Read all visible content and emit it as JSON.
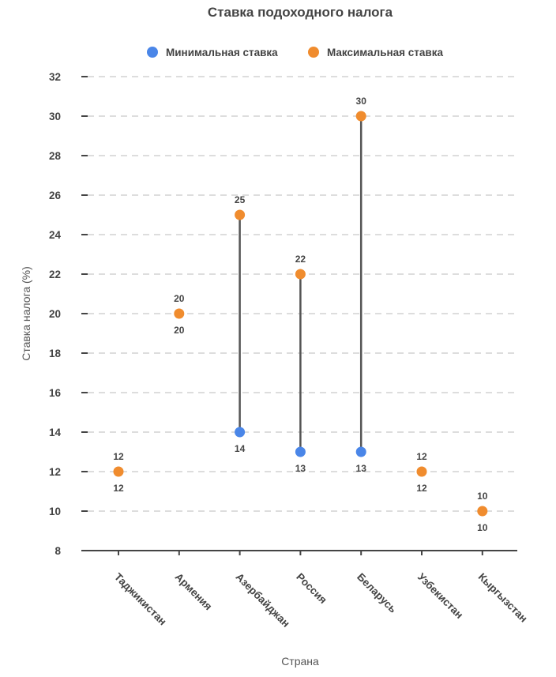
{
  "chart_data": {
    "type": "dumbbell",
    "title": "Ставка подоходного налога",
    "xlabel": "Страна",
    "ylabel": "Ставка налога (%)",
    "ylim": [
      8,
      32
    ],
    "yticks": [
      "32",
      "30",
      "28",
      "26",
      "24",
      "22",
      "20",
      "18",
      "16",
      "14",
      "12",
      "10",
      "8"
    ],
    "ytick_values": [
      32,
      30,
      28,
      26,
      24,
      22,
      20,
      18,
      16,
      14,
      12,
      10,
      8
    ],
    "grid": true,
    "legend_position": "top-center",
    "categories": [
      "Таджикистан",
      "Армения",
      "Азербайджан",
      "Россия",
      "Беларусь",
      "Узбекистан",
      "Кыргызстан"
    ],
    "series": [
      {
        "name": "Минимальная ставка",
        "color": "#4a86e8",
        "values": [
          12,
          20,
          14,
          13,
          13,
          12,
          10
        ]
      },
      {
        "name": "Максимальная ставка",
        "color": "#f08c2e",
        "values": [
          12,
          20,
          25,
          22,
          30,
          12,
          10
        ]
      }
    ],
    "stem_color": "#555555"
  }
}
